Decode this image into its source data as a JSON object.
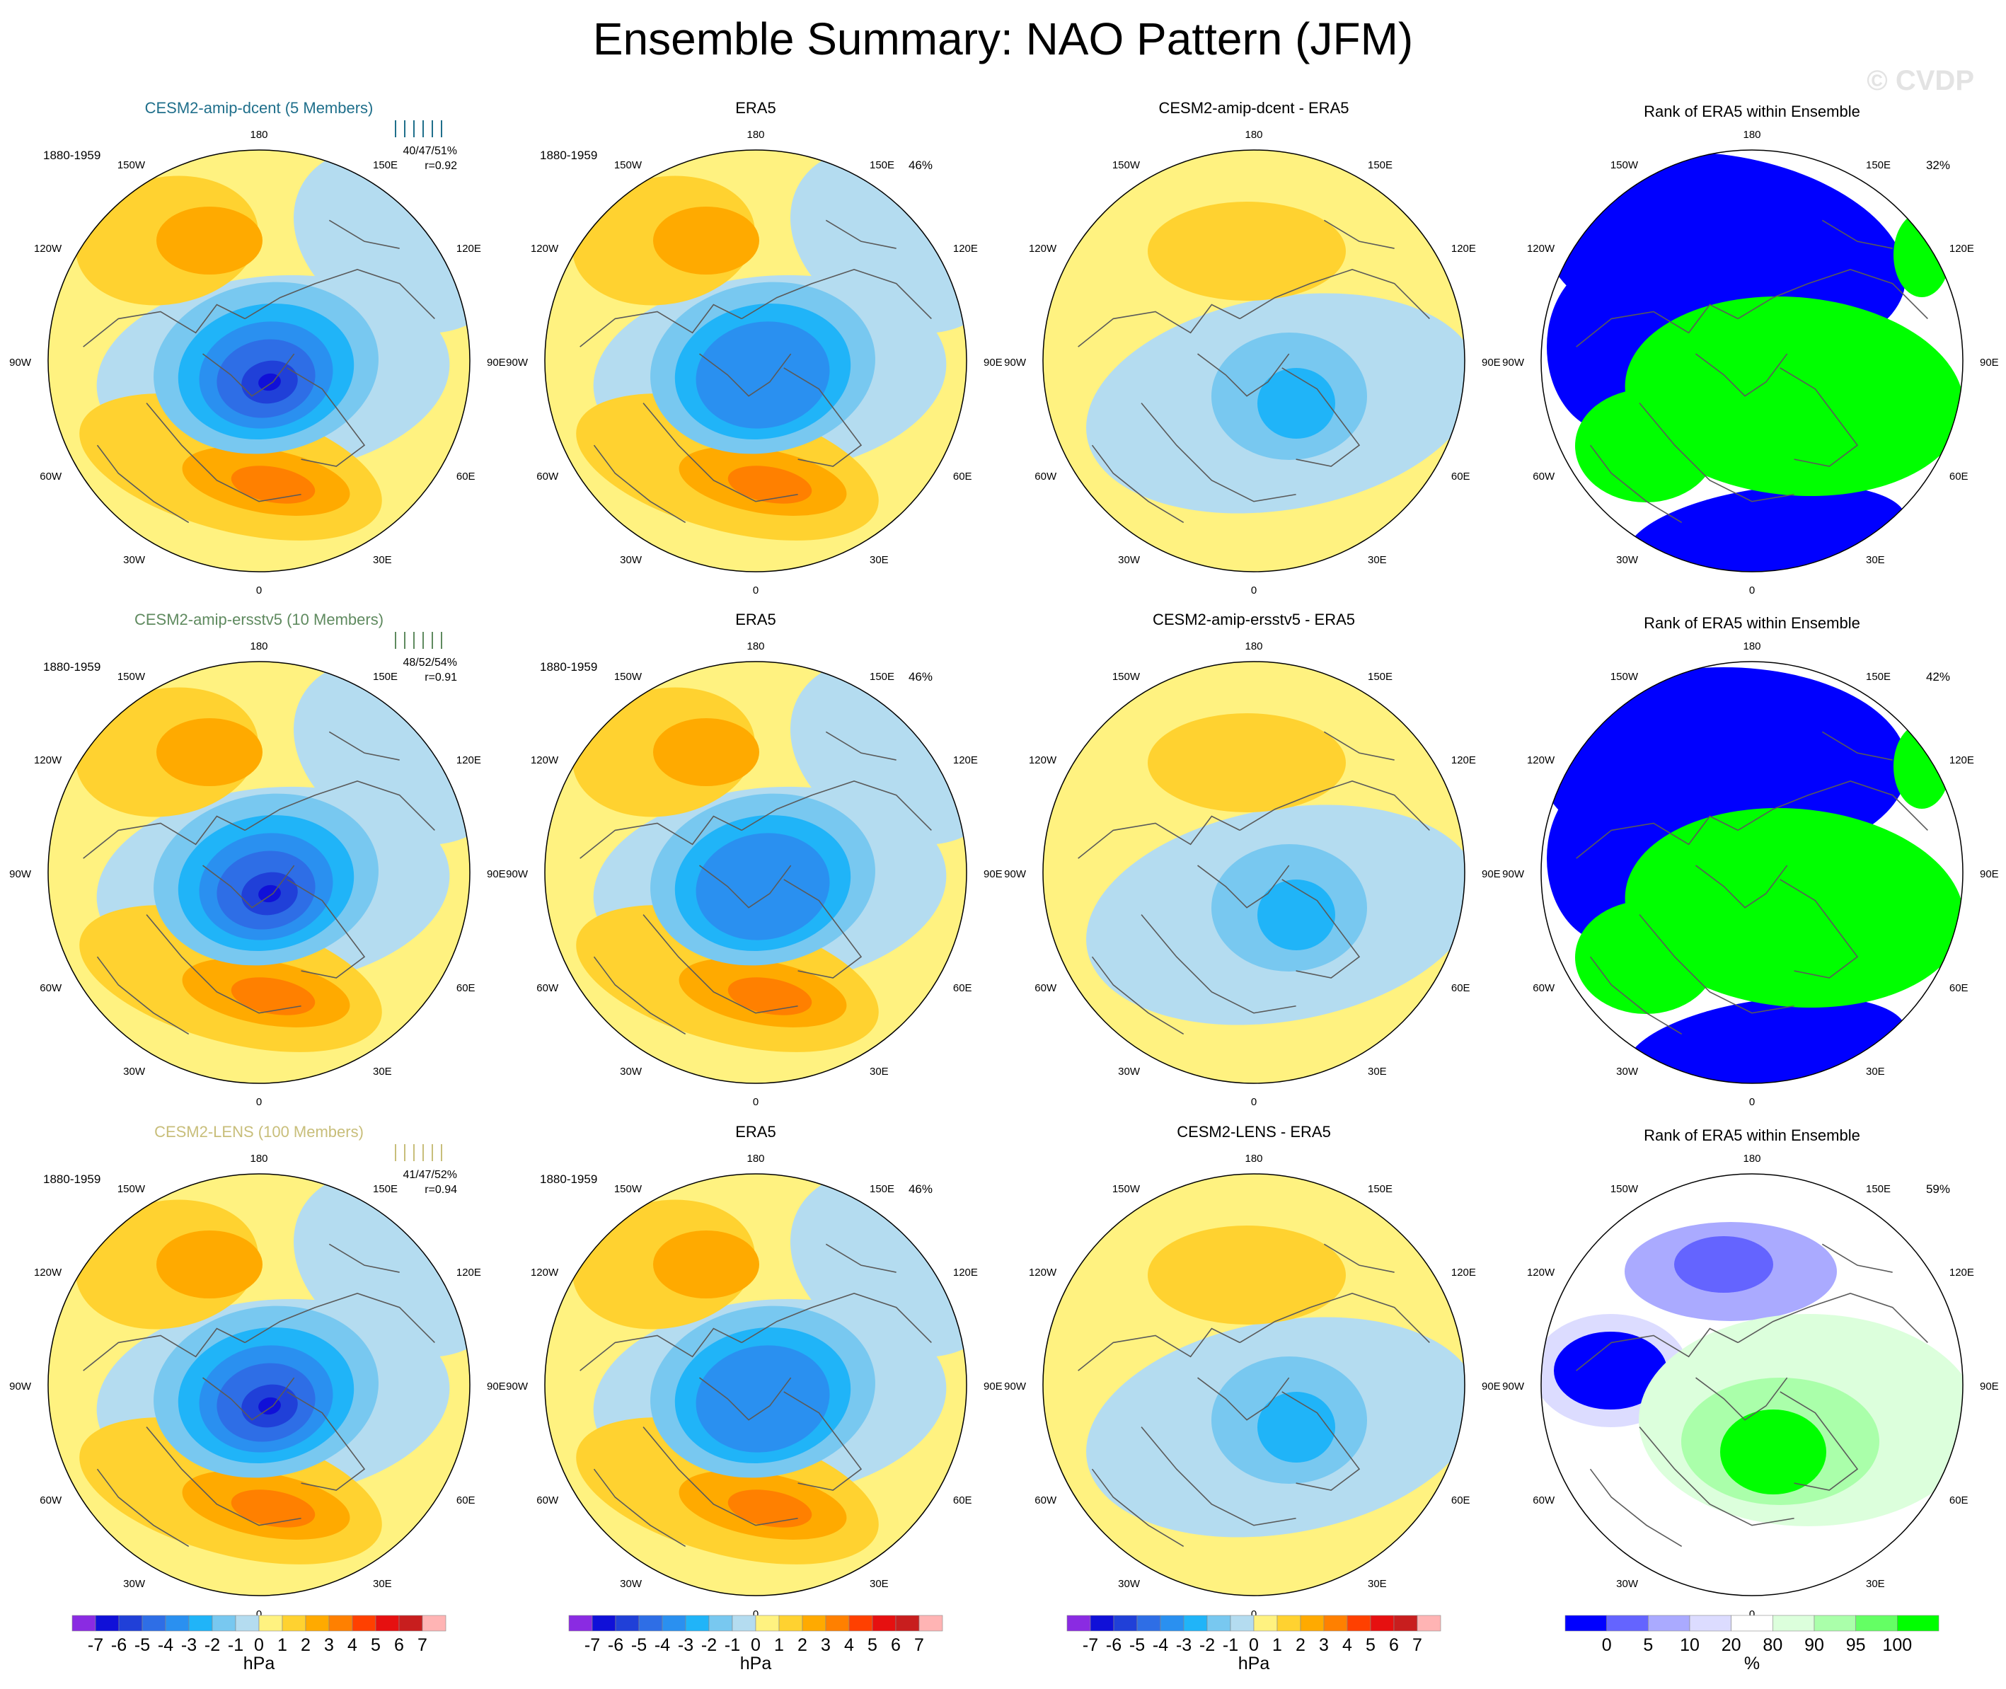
{
  "title": "Ensemble Summary: NAO Pattern (JFM)",
  "watermark": "© CVDP",
  "longitude_labels": [
    "180",
    "150E",
    "120E",
    "90E",
    "60E",
    "30E",
    "0",
    "30W",
    "60W",
    "90W",
    "120W",
    "150W"
  ],
  "colors": {
    "ocean_pos": "#fff280",
    "ocean_neg": "#b4dcf0",
    "coast": "#5a5a5a",
    "rank_low": "#0000ff",
    "rank_high": "#00ff00",
    "title_dcent": "#1f6f8b",
    "title_ersstv5": "#5f8a5f",
    "title_lens": "#c8be7a"
  },
  "rows": [
    {
      "ensemble_title": "CESM2-amip-dcent (5 Members)",
      "title_color": "#1f6f8b",
      "period": "1880-1959",
      "stats": "40/47/51%",
      "correlation": "r=0.92",
      "era5_title": "ERA5",
      "era5_period": "1880-1959",
      "era5_pct": "46%",
      "diff_title": "CESM2-amip-dcent - ERA5",
      "rank_title": "Rank of ERA5 within Ensemble",
      "rank_pct": "32%"
    },
    {
      "ensemble_title": "CESM2-amip-ersstv5 (10 Members)",
      "title_color": "#5f8a5f",
      "period": "1880-1959",
      "stats": "48/52/54%",
      "correlation": "r=0.91",
      "era5_title": "ERA5",
      "era5_period": "1880-1959",
      "era5_pct": "46%",
      "diff_title": "CESM2-amip-ersstv5 - ERA5",
      "rank_title": "Rank of ERA5 within Ensemble",
      "rank_pct": "42%"
    },
    {
      "ensemble_title": "CESM2-LENS (100 Members)",
      "title_color": "#c8be7a",
      "period": "1880-1959",
      "stats": "41/47/52%",
      "correlation": "r=0.94",
      "era5_title": "ERA5",
      "era5_period": "1880-1959",
      "era5_pct": "46%",
      "diff_title": "CESM2-LENS - ERA5",
      "rank_title": "Rank of ERA5 within Ensemble",
      "rank_pct": "59%"
    }
  ],
  "colorbar_hpa": {
    "labels": [
      "-7",
      "-6",
      "-5",
      "-4",
      "-3",
      "-2",
      "-1",
      "0",
      "1",
      "2",
      "3",
      "4",
      "5",
      "6",
      "7"
    ],
    "colors": [
      "#8a2be2",
      "#1010d8",
      "#2040d8",
      "#2e6ee6",
      "#2a90f0",
      "#20b4f8",
      "#78c8f0",
      "#b4dcf0",
      "#fff280",
      "#ffd230",
      "#ffaa00",
      "#ff8000",
      "#ff4000",
      "#e61010",
      "#c81e1e",
      "#ffb4b4"
    ],
    "units": "hPa"
  },
  "colorbar_rank": {
    "labels": [
      "0",
      "5",
      "10",
      "20",
      "80",
      "90",
      "95",
      "100"
    ],
    "colors": [
      "#0000ff",
      "#6464ff",
      "#aaaaff",
      "#dcdcff",
      "#ffffff",
      "#dcffdc",
      "#aaffaa",
      "#64ff64",
      "#00ff00"
    ],
    "units": "%"
  }
}
